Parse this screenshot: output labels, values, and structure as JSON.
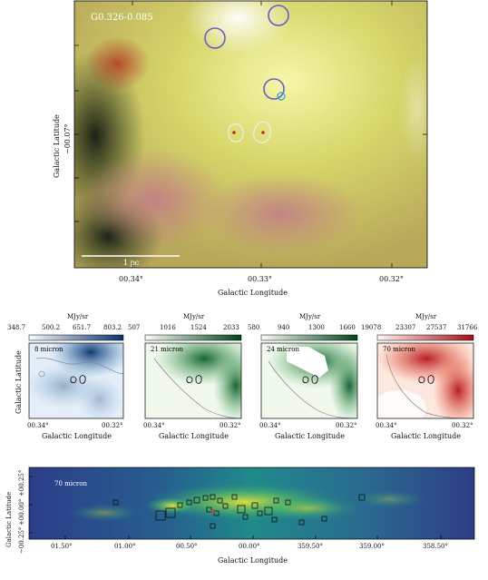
{
  "main_panel": {
    "source_label": "G0.326-0.085",
    "scale_bar_label": "1 pc",
    "x_ticks": [
      "00.34°",
      "00.33°",
      "00.32°"
    ],
    "y_tick": "−00.07°",
    "xlabel": "Galactic Longitude",
    "ylabel": "Galactic Latitude"
  },
  "sub_panels": [
    {
      "band": "8 micron",
      "unit": "MJy/sr",
      "ticks": [
        "348.7",
        "500.2",
        "651.7",
        "803.2"
      ],
      "cmap": "blue"
    },
    {
      "band": "21 micron",
      "unit": "MJy/sr",
      "ticks": [
        "507",
        "1016",
        "1524",
        "2033"
      ],
      "cmap": "green"
    },
    {
      "band": "24 micron",
      "unit": "MJy/sr",
      "ticks": [
        "580",
        "940",
        "1300",
        "1660"
      ],
      "cmap": "green"
    },
    {
      "band": "70 micron",
      "unit": "MJy/sr",
      "ticks": [
        "19078",
        "23307",
        "27537",
        "31766"
      ],
      "cmap": "red"
    }
  ],
  "sub_axes": {
    "x_ticks": [
      "00.34°",
      "00.32°"
    ],
    "xlabel": "Galactic Longitude",
    "ylabel": "Galactic Latitude"
  },
  "overview": {
    "band": "70 micron",
    "x_ticks": [
      "01.50°",
      "01.00°",
      "00.50°",
      "00.00°",
      "359.50°",
      "359.00°",
      "358.50°"
    ],
    "y_ticks": [
      "+00.25°",
      "+00.00°",
      "−00.25°"
    ],
    "xlabel": "Galactic Longitude",
    "ylabel": "Galactic Latitude"
  }
}
